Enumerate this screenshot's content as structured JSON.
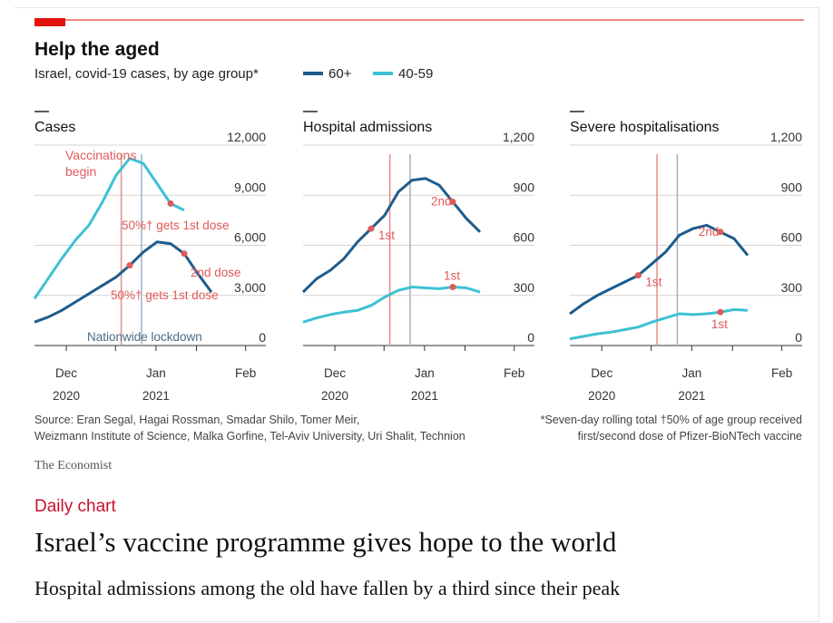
{
  "colors": {
    "accent_red": "#e3120b",
    "series_60plus": "#1f5c8b",
    "series_40_59": "#3ec1d3",
    "vacc_line": "#e88d8d",
    "lockdown_line": "#9db3c6",
    "annotation": "#e05a5a",
    "text": "#222222"
  },
  "header": {
    "title": "Help the aged",
    "subtitle": "Israel, covid-19 cases, by age group*",
    "legend": [
      {
        "label": "60+",
        "color": "#1f5c8b"
      },
      {
        "label": "40-59",
        "color": "#3ec1d3"
      }
    ]
  },
  "footer": {
    "source_line1": "Source: Eran Segal, Hagai Rossman, Smadar Shilo, Tomer Meir,",
    "source_line2": "Weizmann Institute of Science, Malka Gorfine, Tel-Aviv University, Uri Shalit, Technion",
    "note_line1": "*Seven-day rolling total   †50% of age group received",
    "note_line2": "first/second dose of Pfizer-BioNTech vaccine",
    "brand": "The Economist"
  },
  "article": {
    "kicker": "Daily chart",
    "headline": "Israel’s vaccine programme gives hope to the world",
    "subhead": "Hospital admissions among the old have fallen by a third since their peak"
  },
  "chart_data": [
    {
      "type": "line",
      "title": "Cases",
      "x_axis": {
        "range": [
          "2020-11-20",
          "2021-02-08"
        ],
        "ticks": [
          [
            "Dec",
            "2020"
          ],
          [
            "Jan",
            "2021"
          ],
          [
            "Feb",
            ""
          ]
        ]
      },
      "ylim": [
        0,
        12000
      ],
      "yticks": [
        "12,000",
        "9,000",
        "6,000",
        "3,000",
        "0"
      ],
      "series": [
        {
          "name": "60+",
          "values": [
            1400,
            1700,
            2100,
            2600,
            3100,
            3600,
            4100,
            4800,
            5600,
            6200,
            6100,
            5500,
            4300,
            3200
          ]
        },
        {
          "name": "40-59",
          "values": [
            2800,
            4000,
            5200,
            6300,
            7200,
            8600,
            10200,
            11200,
            10900,
            9700,
            8500,
            8100,
            null,
            null
          ]
        }
      ],
      "events": [
        {
          "label": "Vaccinations begin",
          "date": "2020-12-20"
        },
        {
          "label": "Nationwide lockdown",
          "date": "2020-12-27"
        }
      ],
      "annotations": [
        {
          "label": "50%† gets 1st dose",
          "series": "40-59"
        },
        {
          "label": "50%† gets 1st dose",
          "series": "60+"
        },
        {
          "label": "2nd dose",
          "series": "60+"
        }
      ]
    },
    {
      "type": "line",
      "title": "Hospital admissions",
      "x_axis": {
        "range": [
          "2020-11-20",
          "2021-02-08"
        ],
        "ticks": [
          [
            "Dec",
            "2020"
          ],
          [
            "Jan",
            "2021"
          ],
          [
            "Feb",
            ""
          ]
        ]
      },
      "ylim": [
        0,
        1200
      ],
      "yticks": [
        "1,200",
        "900",
        "600",
        "300",
        "0"
      ],
      "series": [
        {
          "name": "60+",
          "values": [
            320,
            400,
            450,
            520,
            620,
            700,
            780,
            920,
            990,
            1000,
            960,
            860,
            760,
            680
          ]
        },
        {
          "name": "40-59",
          "values": [
            140,
            165,
            185,
            200,
            210,
            240,
            290,
            330,
            350,
            345,
            340,
            350,
            345,
            320
          ]
        }
      ],
      "events": [
        {
          "label": "",
          "date": "2020-12-20"
        },
        {
          "label": "",
          "date": "2020-12-27"
        }
      ],
      "annotations": [
        {
          "label": "1st",
          "series": "60+"
        },
        {
          "label": "2nd",
          "series": "60+"
        },
        {
          "label": "1st",
          "series": "40-59"
        }
      ]
    },
    {
      "type": "line",
      "title": "Severe hospitalisations",
      "x_axis": {
        "range": [
          "2020-11-20",
          "2021-02-08"
        ],
        "ticks": [
          [
            "Dec",
            "2020"
          ],
          [
            "Jan",
            "2021"
          ],
          [
            "Feb",
            ""
          ]
        ]
      },
      "ylim": [
        0,
        1200
      ],
      "yticks": [
        "1,200",
        "900",
        "600",
        "300",
        "0"
      ],
      "series": [
        {
          "name": "60+",
          "values": [
            190,
            250,
            300,
            340,
            380,
            420,
            490,
            560,
            660,
            700,
            720,
            680,
            640,
            540
          ]
        },
        {
          "name": "40-59",
          "values": [
            40,
            55,
            70,
            80,
            95,
            110,
            140,
            165,
            190,
            185,
            190,
            200,
            215,
            210
          ]
        }
      ],
      "events": [
        {
          "label": "",
          "date": "2020-12-20"
        },
        {
          "label": "",
          "date": "2020-12-27"
        }
      ],
      "annotations": [
        {
          "label": "1st",
          "series": "60+"
        },
        {
          "label": "2nd",
          "series": "60+"
        },
        {
          "label": "1st",
          "series": "40-59"
        }
      ]
    }
  ]
}
